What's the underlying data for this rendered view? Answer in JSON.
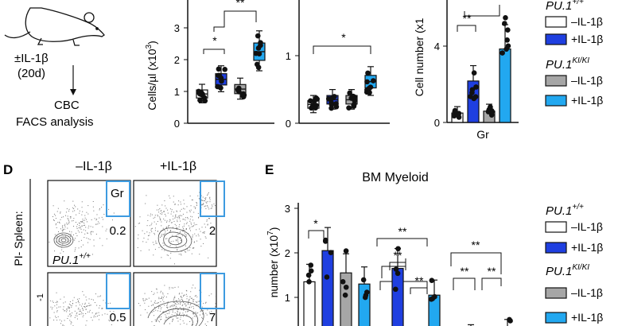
{
  "schematic": {
    "treatment": "±IL-1β",
    "duration": "(20d)",
    "readout1": "CBC",
    "readout2": "FACS analysis"
  },
  "panel_top_boxplots": {
    "ylabel": "Cells/µl (x10³)",
    "ylabel_main": "Cells/µl (x10",
    "ylabel_sup": "3",
    "ylabel_end": ")",
    "chart1": {
      "yticks": [
        "0",
        "1",
        "2",
        "3"
      ],
      "sig": [
        "*",
        "**"
      ]
    },
    "chart2": {
      "yticks": [
        "0",
        "1"
      ],
      "sig": [
        "*"
      ]
    }
  },
  "panel_top_bars": {
    "ylabel": "Cell number (x1",
    "yticks": [
      "0",
      "4"
    ],
    "xlabel": "Gr",
    "sig": [
      "**"
    ]
  },
  "legend_top": {
    "geno1": "PU.1",
    "geno1_sup": "+/+",
    "geno2": "PU.1",
    "geno2_sup": "KI/KI",
    "items": [
      "–IL-1β",
      "+IL-1β",
      "–IL-1β",
      "+IL-1β"
    ]
  },
  "panel_D": {
    "letter": "D",
    "col_minus": "–IL-1β",
    "col_plus": "+IL-1β",
    "gate": "Gr",
    "row_label": "PI- Spleen:",
    "row_label_2": "-1",
    "genotype": "PU.1",
    "genotype_sup": "+/+",
    "values": [
      "0.2",
      "2",
      "0.5",
      "7"
    ]
  },
  "panel_E": {
    "letter": "E",
    "title": "BM Myeloid",
    "ylabel_main": "number (x10",
    "ylabel_sup": "7",
    "ylabel_end": ")",
    "yticks": [
      "3",
      "2",
      "1"
    ],
    "sig": [
      "*",
      "**",
      "**",
      "**",
      "**",
      "**",
      "**"
    ]
  },
  "legend_E": {
    "geno1": "PU.1",
    "geno1_sup": "+/+",
    "geno2": "PU.1",
    "geno2_sup": "KI/KI",
    "items": [
      "–IL-1β",
      "+IL-1β",
      "–IL-1β",
      "+IL-1β"
    ]
  },
  "colors": {
    "wt_minus": "#ffffff",
    "wt_plus": "#1f3fe0",
    "ki_minus": "#a6a6a6",
    "ki_plus": "#22a8f0",
    "gate": "#3d9be0"
  },
  "chart_data": [
    {
      "type": "bar",
      "categories": [
        "PU.1+/+ –IL-1β",
        "PU.1+/+ +IL-1β",
        "PU.1KI/KI –IL-1β",
        "PU.1KI/KI +IL-1β"
      ],
      "values": [
        0.9,
        1.35,
        1.05,
        2.2
      ],
      "ylabel": "Cells/µl (x10³)",
      "ylim": [
        0,
        3.3
      ]
    },
    {
      "type": "bar",
      "categories": [
        "PU.1+/+ –IL-1β",
        "PU.1+/+ +IL-1β",
        "PU.1KI/KI –IL-1β",
        "PU.1KI/KI +IL-1β"
      ],
      "values": [
        0.28,
        0.35,
        0.35,
        0.62
      ],
      "ylim": [
        0,
        1.6
      ]
    },
    {
      "type": "bar",
      "categories": [
        "Gr"
      ],
      "series": [
        {
          "name": "PU.1+/+ –IL-1β",
          "values": [
            0.5
          ]
        },
        {
          "name": "PU.1+/+ +IL-1β",
          "values": [
            2.2
          ]
        },
        {
          "name": "PU.1KI/KI –IL-1β",
          "values": [
            0.6
          ]
        },
        {
          "name": "PU.1KI/KI +IL-1β",
          "values": [
            3.9
          ]
        }
      ],
      "ylabel": "Cell number",
      "ylim": [
        0,
        6.5
      ]
    },
    {
      "type": "bar",
      "title": "BM Myeloid",
      "categories": [
        "g1",
        "g2",
        "g3"
      ],
      "series": [
        {
          "name": "PU.1+/+ –IL-1β",
          "values": [
            1.35,
            0.1,
            0.05
          ]
        },
        {
          "name": "PU.1+/+ +IL-1β",
          "values": [
            2.05,
            1.65,
            0.2
          ]
        },
        {
          "name": "PU.1KI/KI –IL-1β",
          "values": [
            1.55,
            0.05,
            0.1
          ]
        },
        {
          "name": "PU.1KI/KI +IL-1β",
          "values": [
            1.3,
            1.05,
            0.3
          ]
        }
      ],
      "ylabel": "number (x10⁷)",
      "ylim": [
        0,
        3
      ]
    }
  ]
}
